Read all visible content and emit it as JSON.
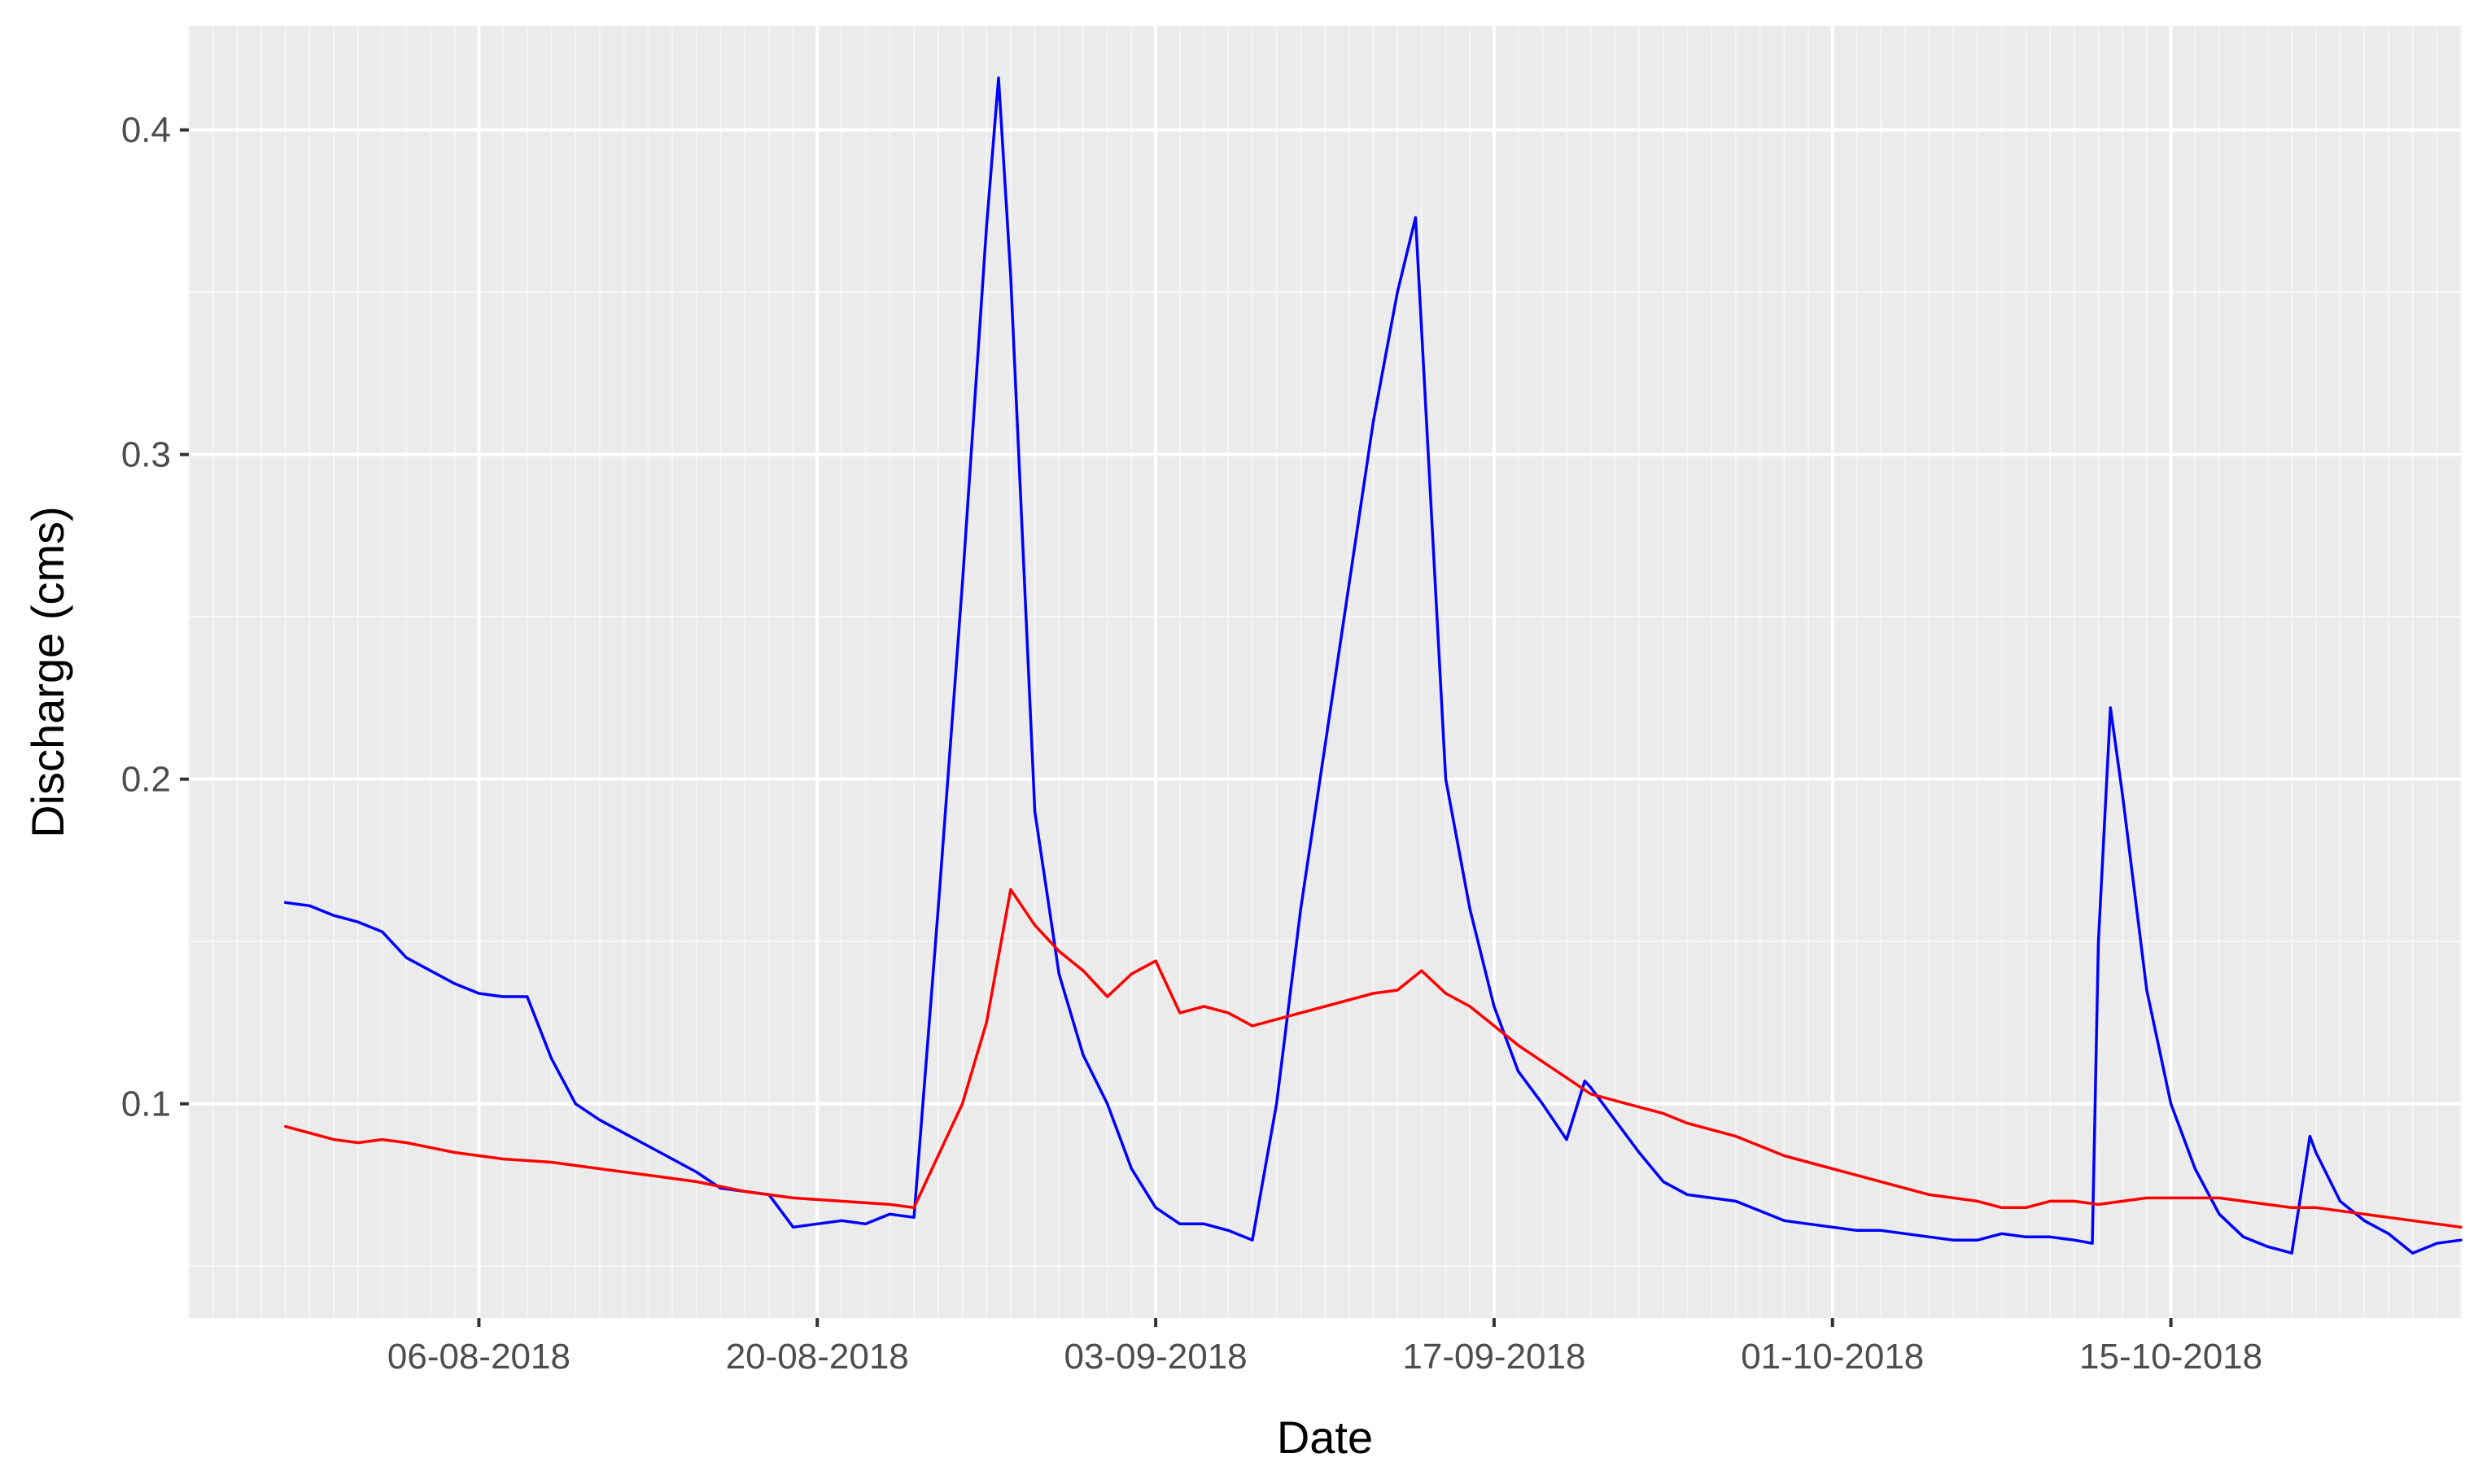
{
  "chart_data": {
    "type": "line",
    "title": "",
    "xlabel": "Date",
    "ylabel": "Discharge (cms)",
    "x_type": "date",
    "x_date_format": "DD-MM-YYYY",
    "x_ticks": [
      "06-08-2018",
      "20-08-2018",
      "03-09-2018",
      "17-09-2018",
      "01-10-2018",
      "15-10-2018"
    ],
    "xlim": [
      "2018-07-25",
      "2018-10-27"
    ],
    "y_ticks": [
      "0.1",
      "0.2",
      "0.3",
      "0.4"
    ],
    "ylim": [
      0.034,
      0.432
    ],
    "grid": true,
    "background": "#ebebeb",
    "legend": "none",
    "series": [
      {
        "color": "#0000ff",
        "points": [
          [
            "2018-07-29",
            0.162
          ],
          [
            "2018-07-30",
            0.161
          ],
          [
            "2018-07-31",
            0.158
          ],
          [
            "2018-08-01",
            0.156
          ],
          [
            "2018-08-02",
            0.153
          ],
          [
            "2018-08-03",
            0.145
          ],
          [
            "2018-08-04",
            0.141
          ],
          [
            "2018-08-05",
            0.137
          ],
          [
            "2018-08-06",
            0.134
          ],
          [
            "2018-08-07",
            0.133
          ],
          [
            "2018-08-08",
            0.133
          ],
          [
            "2018-08-09",
            0.114
          ],
          [
            "2018-08-10",
            0.1
          ],
          [
            "2018-08-11",
            0.095
          ],
          [
            "2018-08-12",
            0.091
          ],
          [
            "2018-08-13",
            0.087
          ],
          [
            "2018-08-14",
            0.083
          ],
          [
            "2018-08-15",
            0.079
          ],
          [
            "2018-08-16",
            0.074
          ],
          [
            "2018-08-17",
            0.073
          ],
          [
            "2018-08-18",
            0.072
          ],
          [
            "2018-08-19",
            0.062
          ],
          [
            "2018-08-20",
            0.063
          ],
          [
            "2018-08-21",
            0.064
          ],
          [
            "2018-08-22",
            0.063
          ],
          [
            "2018-08-23",
            0.066
          ],
          [
            "2018-08-24",
            0.065
          ],
          [
            "2018-08-25",
            0.16
          ],
          [
            "2018-08-26",
            0.26
          ],
          [
            "2018-08-27",
            0.37
          ],
          [
            "2018-08-27 12:00",
            0.416
          ],
          [
            "2018-08-28",
            0.355
          ],
          [
            "2018-08-29",
            0.19
          ],
          [
            "2018-08-30",
            0.14
          ],
          [
            "2018-08-31",
            0.115
          ],
          [
            "2018-09-01",
            0.1
          ],
          [
            "2018-09-02",
            0.08
          ],
          [
            "2018-09-03",
            0.068
          ],
          [
            "2018-09-04",
            0.063
          ],
          [
            "2018-09-05",
            0.063
          ],
          [
            "2018-09-06",
            0.061
          ],
          [
            "2018-09-07",
            0.058
          ],
          [
            "2018-09-08",
            0.1
          ],
          [
            "2018-09-09",
            0.16
          ],
          [
            "2018-09-10",
            0.21
          ],
          [
            "2018-09-11",
            0.26
          ],
          [
            "2018-09-12",
            0.31
          ],
          [
            "2018-09-13",
            0.35
          ],
          [
            "2018-09-13 18:00",
            0.373
          ],
          [
            "2018-09-15",
            0.2
          ],
          [
            "2018-09-16",
            0.16
          ],
          [
            "2018-09-17",
            0.13
          ],
          [
            "2018-09-18",
            0.11
          ],
          [
            "2018-09-19",
            0.1
          ],
          [
            "2018-09-20",
            0.089
          ],
          [
            "2018-09-20 18:00",
            0.107
          ],
          [
            "2018-09-21",
            0.105
          ],
          [
            "2018-09-22",
            0.095
          ],
          [
            "2018-09-23",
            0.085
          ],
          [
            "2018-09-24",
            0.076
          ],
          [
            "2018-09-25",
            0.072
          ],
          [
            "2018-09-26",
            0.071
          ],
          [
            "2018-09-27",
            0.07
          ],
          [
            "2018-09-28",
            0.067
          ],
          [
            "2018-09-29",
            0.064
          ],
          [
            "2018-09-30",
            0.063
          ],
          [
            "2018-10-01",
            0.062
          ],
          [
            "2018-10-02",
            0.061
          ],
          [
            "2018-10-03",
            0.061
          ],
          [
            "2018-10-04",
            0.06
          ],
          [
            "2018-10-05",
            0.059
          ],
          [
            "2018-10-06",
            0.058
          ],
          [
            "2018-10-07",
            0.058
          ],
          [
            "2018-10-08",
            0.06
          ],
          [
            "2018-10-09",
            0.059
          ],
          [
            "2018-10-10",
            0.059
          ],
          [
            "2018-10-11",
            0.058
          ],
          [
            "2018-10-11 18:00",
            0.057
          ],
          [
            "2018-10-12",
            0.15
          ],
          [
            "2018-10-12 12:00",
            0.222
          ],
          [
            "2018-10-13",
            0.195
          ],
          [
            "2018-10-14",
            0.135
          ],
          [
            "2018-10-15",
            0.1
          ],
          [
            "2018-10-16",
            0.08
          ],
          [
            "2018-10-17",
            0.066
          ],
          [
            "2018-10-18",
            0.059
          ],
          [
            "2018-10-19",
            0.056
          ],
          [
            "2018-10-20",
            0.054
          ],
          [
            "2018-10-20 18:00",
            0.09
          ],
          [
            "2018-10-21",
            0.085
          ],
          [
            "2018-10-22",
            0.07
          ],
          [
            "2018-10-23",
            0.064
          ],
          [
            "2018-10-24",
            0.06
          ],
          [
            "2018-10-25",
            0.054
          ],
          [
            "2018-10-26",
            0.057
          ],
          [
            "2018-10-27",
            0.058
          ]
        ]
      },
      {
        "color": "#ff0000",
        "points": [
          [
            "2018-07-29",
            0.093
          ],
          [
            "2018-07-30",
            0.091
          ],
          [
            "2018-07-31",
            0.089
          ],
          [
            "2018-08-01",
            0.088
          ],
          [
            "2018-08-02",
            0.089
          ],
          [
            "2018-08-03",
            0.088
          ],
          [
            "2018-08-05",
            0.085
          ],
          [
            "2018-08-07",
            0.083
          ],
          [
            "2018-08-09",
            0.082
          ],
          [
            "2018-08-11",
            0.08
          ],
          [
            "2018-08-13",
            0.078
          ],
          [
            "2018-08-15",
            0.076
          ],
          [
            "2018-08-17",
            0.073
          ],
          [
            "2018-08-19",
            0.071
          ],
          [
            "2018-08-21",
            0.07
          ],
          [
            "2018-08-23",
            0.069
          ],
          [
            "2018-08-24",
            0.068
          ],
          [
            "2018-08-26",
            0.1
          ],
          [
            "2018-08-27",
            0.125
          ],
          [
            "2018-08-28",
            0.166
          ],
          [
            "2018-08-29",
            0.155
          ],
          [
            "2018-08-30",
            0.147
          ],
          [
            "2018-08-31",
            0.141
          ],
          [
            "2018-09-01",
            0.133
          ],
          [
            "2018-09-02",
            0.14
          ],
          [
            "2018-09-03",
            0.144
          ],
          [
            "2018-09-04",
            0.128
          ],
          [
            "2018-09-05",
            0.13
          ],
          [
            "2018-09-06",
            0.128
          ],
          [
            "2018-09-07",
            0.124
          ],
          [
            "2018-09-08",
            0.126
          ],
          [
            "2018-09-09",
            0.128
          ],
          [
            "2018-09-10",
            0.13
          ],
          [
            "2018-09-11",
            0.132
          ],
          [
            "2018-09-12",
            0.134
          ],
          [
            "2018-09-13",
            0.135
          ],
          [
            "2018-09-14",
            0.141
          ],
          [
            "2018-09-15",
            0.134
          ],
          [
            "2018-09-16",
            0.13
          ],
          [
            "2018-09-17",
            0.124
          ],
          [
            "2018-09-18",
            0.118
          ],
          [
            "2018-09-19",
            0.113
          ],
          [
            "2018-09-20",
            0.108
          ],
          [
            "2018-09-21",
            0.103
          ],
          [
            "2018-09-22",
            0.101
          ],
          [
            "2018-09-23",
            0.099
          ],
          [
            "2018-09-24",
            0.097
          ],
          [
            "2018-09-25",
            0.094
          ],
          [
            "2018-09-26",
            0.092
          ],
          [
            "2018-09-27",
            0.09
          ],
          [
            "2018-09-28",
            0.087
          ],
          [
            "2018-09-29",
            0.084
          ],
          [
            "2018-09-30",
            0.082
          ],
          [
            "2018-10-01",
            0.08
          ],
          [
            "2018-10-02",
            0.078
          ],
          [
            "2018-10-03",
            0.076
          ],
          [
            "2018-10-04",
            0.074
          ],
          [
            "2018-10-05",
            0.072
          ],
          [
            "2018-10-06",
            0.071
          ],
          [
            "2018-10-07",
            0.07
          ],
          [
            "2018-10-08",
            0.068
          ],
          [
            "2018-10-09",
            0.068
          ],
          [
            "2018-10-10",
            0.07
          ],
          [
            "2018-10-11",
            0.07
          ],
          [
            "2018-10-12",
            0.069
          ],
          [
            "2018-10-13",
            0.07
          ],
          [
            "2018-10-14",
            0.071
          ],
          [
            "2018-10-15",
            0.071
          ],
          [
            "2018-10-16",
            0.071
          ],
          [
            "2018-10-17",
            0.071
          ],
          [
            "2018-10-18",
            0.07
          ],
          [
            "2018-10-19",
            0.069
          ],
          [
            "2018-10-20",
            0.068
          ],
          [
            "2018-10-21",
            0.068
          ],
          [
            "2018-10-22",
            0.067
          ],
          [
            "2018-10-23",
            0.066
          ],
          [
            "2018-10-24",
            0.065
          ],
          [
            "2018-10-25",
            0.064
          ],
          [
            "2018-10-26",
            0.063
          ],
          [
            "2018-10-27",
            0.062
          ]
        ]
      }
    ]
  }
}
